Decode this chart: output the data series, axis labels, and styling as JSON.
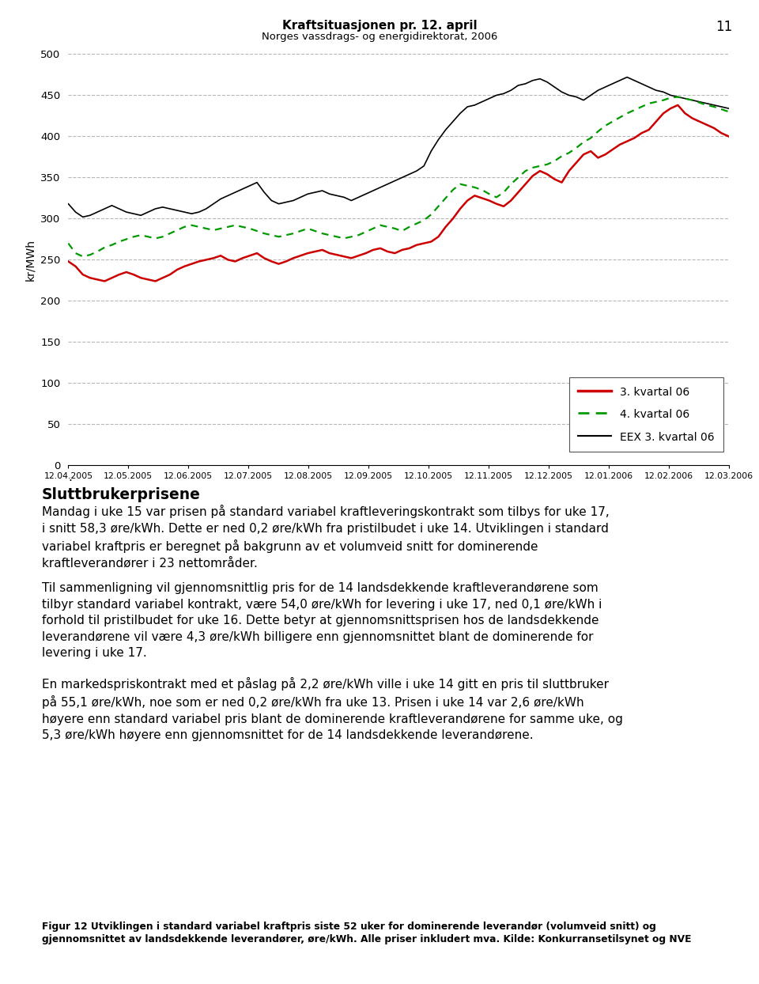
{
  "title": "Kraftsituasjonen pr. 12. april",
  "subtitle": "Norges vassdrags- og energidirektorat, 2006",
  "page_number": "11",
  "ylabel": "kr/MWh",
  "ylim": [
    0,
    500
  ],
  "yticks": [
    0,
    50,
    100,
    150,
    200,
    250,
    300,
    350,
    400,
    450,
    500
  ],
  "x_labels": [
    "12.04.2005",
    "12.05.2005",
    "12.06.2005",
    "12.07.2005",
    "12.08.2005",
    "12.09.2005",
    "12.10.2005",
    "12.11.2005",
    "12.12.2005",
    "12.01.2006",
    "12.02.2006",
    "12.03.2006"
  ],
  "legend_labels": [
    "3. kvartal 06",
    "4. kvartal 06",
    "EEX 3. kvartal 06"
  ],
  "line_colors": [
    "#cc0000",
    "#009900",
    "#000000"
  ],
  "grid_color": "#aaaaaa",
  "background_color": "#ffffff",
  "text_heading": "Sluttbrukerprisene",
  "text_para1": "Mandag i uke 15 var prisen på standard variabel kraftleveringskontrakt som tilbys for uke 17,\ni snitt 58,3 øre/kWh. Dette er ned 0,2 øre/kWh fra pristilbudet i uke 14. Utviklingen i standard\nvariabel kraftpris er beregnet på bakgrunn av et volumveid snitt for dominerende\nkraftleverandører i 23 nettområder.",
  "text_para2": "Til sammenligning vil gjennomsnittlig pris for de 14 landsdekkende kraftleverandørene som\ntilbyr standard variabel kontrakt, være 54,0 øre/kWh for levering i uke 17, ned 0,1 øre/kWh i\nforhold til pristilbudet for uke 16. Dette betyr at gjennomsnittsprisen hos de landsdekkende\nleverandørene vil være 4,3 øre/kWh billigere enn gjennomsnittet blant de dominerende for\nlevering i uke 17.",
  "text_para3": "En markedspriskontrakt med et påslag på 2,2 øre/kWh ville i uke 14 gitt en pris til sluttbruker\npå 55,1 øre/kWh, noe som er ned 0,2 øre/kWh fra uke 13. Prisen i uke 14 var 2,6 øre/kWh\nhøyere enn standard variabel pris blant de dominerende kraftleverandørene for samme uke, og\n5,3 øre/kWh høyere enn gjennomsnittet for de 14 landsdekkende leverandørene.",
  "caption_bold": "Figur 12 Utviklingen i standard variabel kraftpris siste 52 uker for dominerende leverandør (volumveid snitt) og",
  "caption_normal": "gjennomsnittet av landsdekkende leverandører, øre/kWh. Alle priser inkludert mva. Kilde: Konkurransetilsynet og NVE",
  "red_line": [
    248,
    242,
    232,
    228,
    226,
    224,
    228,
    232,
    235,
    232,
    228,
    226,
    224,
    228,
    232,
    238,
    242,
    245,
    248,
    250,
    252,
    255,
    250,
    248,
    252,
    255,
    258,
    252,
    248,
    245,
    248,
    252,
    255,
    258,
    260,
    262,
    258,
    256,
    254,
    252,
    255,
    258,
    262,
    264,
    260,
    258,
    262,
    264,
    268,
    270,
    272,
    278,
    290,
    300,
    312,
    322,
    328,
    325,
    322,
    318,
    315,
    322,
    332,
    342,
    352,
    358,
    354,
    348,
    344,
    358,
    368,
    378,
    382,
    374,
    378,
    384,
    390,
    394,
    398,
    404,
    408,
    418,
    428,
    434,
    438,
    428,
    422,
    418,
    414,
    410,
    404,
    400
  ],
  "green_dotted": [
    270,
    258,
    254,
    256,
    260,
    265,
    268,
    272,
    275,
    278,
    280,
    278,
    276,
    278,
    282,
    286,
    290,
    292,
    290,
    288,
    286,
    288,
    290,
    292,
    290,
    288,
    285,
    282,
    280,
    278,
    280,
    282,
    285,
    288,
    285,
    282,
    280,
    278,
    276,
    278,
    280,
    284,
    288,
    292,
    290,
    288,
    285,
    290,
    294,
    298,
    305,
    315,
    325,
    335,
    342,
    340,
    338,
    335,
    330,
    326,
    332,
    342,
    350,
    358,
    362,
    364,
    366,
    370,
    376,
    380,
    386,
    393,
    398,
    406,
    413,
    418,
    423,
    428,
    432,
    436,
    440,
    442,
    444,
    447,
    448,
    446,
    444,
    441,
    438,
    436,
    433,
    430
  ],
  "black_line": [
    318,
    308,
    302,
    304,
    308,
    312,
    316,
    312,
    308,
    306,
    304,
    308,
    312,
    314,
    312,
    310,
    308,
    306,
    308,
    312,
    318,
    324,
    328,
    332,
    336,
    340,
    344,
    332,
    322,
    318,
    320,
    322,
    326,
    330,
    332,
    334,
    330,
    328,
    326,
    322,
    326,
    330,
    334,
    338,
    342,
    346,
    350,
    354,
    358,
    364,
    382,
    396,
    408,
    418,
    428,
    436,
    438,
    442,
    446,
    450,
    452,
    456,
    462,
    464,
    468,
    470,
    466,
    460,
    454,
    450,
    448,
    444,
    450,
    456,
    460,
    464,
    468,
    472,
    468,
    464,
    460,
    456,
    454,
    450,
    448,
    446,
    444,
    442,
    440,
    438,
    436,
    434
  ]
}
